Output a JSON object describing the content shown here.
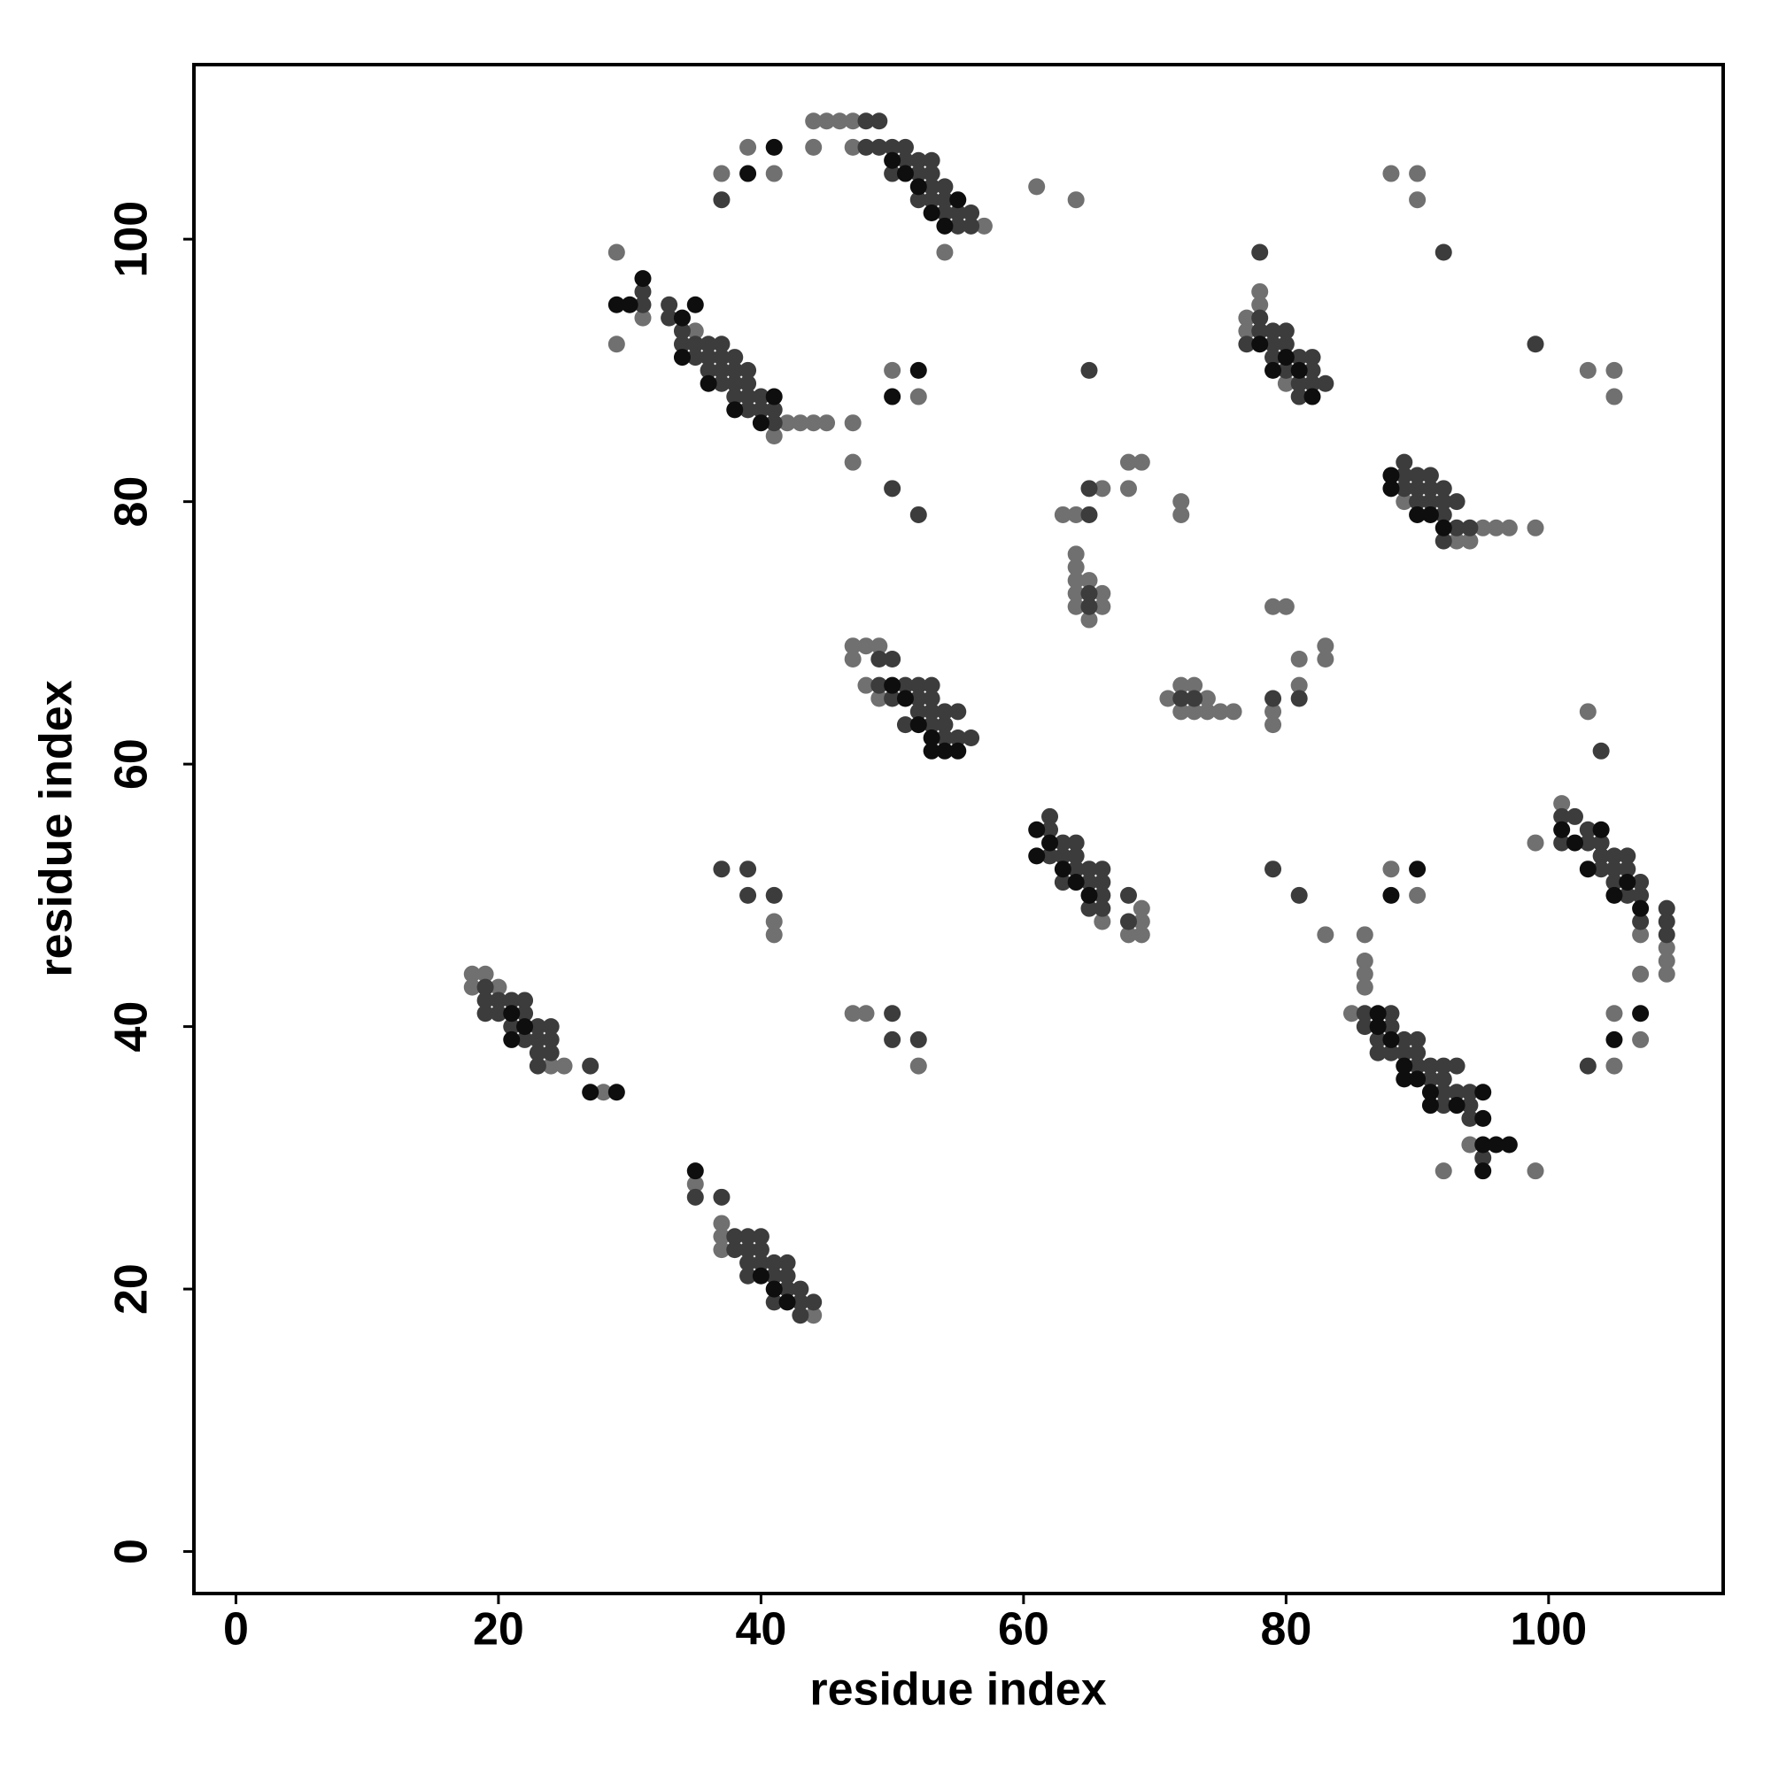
{
  "chart_data": {
    "type": "scatter",
    "xlabel": "residue index",
    "ylabel": "residue index",
    "xlim": [
      -3.2,
      113.3
    ],
    "ylim": [
      -3.2,
      113.3
    ],
    "xticks": [
      0,
      20,
      40,
      60,
      80,
      100
    ],
    "yticks": [
      0,
      20,
      40,
      60,
      80,
      100
    ],
    "series": [
      {
        "color": "#707070",
        "x": [
          44,
          45,
          46,
          47,
          39,
          44,
          47,
          37,
          41,
          54,
          61,
          64,
          57,
          29,
          31,
          35,
          29,
          42,
          43,
          44,
          45,
          47,
          41,
          47,
          50,
          52,
          47,
          48,
          49,
          47,
          48,
          49,
          64,
          63,
          66,
          68,
          69,
          68,
          72,
          72,
          64,
          64,
          64,
          65,
          64,
          66,
          64,
          66,
          65,
          71,
          72,
          73,
          74,
          72,
          73,
          74,
          75,
          76,
          79,
          80,
          79,
          79,
          81,
          81,
          83,
          83,
          78,
          78,
          77,
          77,
          80,
          88,
          90,
          90,
          103,
          105,
          105,
          93,
          94,
          95,
          96,
          97,
          99,
          89,
          66,
          68,
          69,
          69,
          69,
          101,
          99,
          109,
          109,
          109,
          107,
          107,
          103,
          83,
          88,
          90,
          86,
          86,
          86,
          86,
          85,
          92,
          99,
          94,
          105,
          107,
          105,
          18,
          18,
          19,
          20,
          24,
          25,
          28,
          41,
          41,
          47,
          48,
          52,
          35,
          37,
          37,
          37,
          44
        ],
        "y": [
          109,
          109,
          109,
          109,
          107,
          107,
          107,
          105,
          105,
          99,
          104,
          103,
          101,
          99,
          94,
          93,
          92,
          86,
          86,
          86,
          86,
          86,
          85,
          83,
          90,
          88,
          69,
          69,
          69,
          68,
          66,
          65,
          79,
          79,
          81,
          83,
          83,
          81,
          80,
          79,
          76,
          75,
          74,
          74,
          73,
          73,
          72,
          72,
          71,
          65,
          66,
          66,
          65,
          64,
          64,
          64,
          64,
          64,
          72,
          72,
          64,
          63,
          68,
          66,
          69,
          68,
          96,
          95,
          94,
          93,
          89,
          105,
          105,
          103,
          90,
          90,
          88,
          77,
          77,
          78,
          78,
          78,
          78,
          80,
          48,
          47,
          47,
          48,
          49,
          57,
          54,
          46,
          45,
          44,
          44,
          47,
          64,
          47,
          52,
          50,
          47,
          45,
          44,
          43,
          41,
          29,
          29,
          31,
          41,
          39,
          37,
          44,
          43,
          44,
          43,
          37,
          37,
          35,
          48,
          47,
          41,
          41,
          37,
          28,
          25,
          24,
          23,
          18
        ]
      },
      {
        "color": "#3c3c3c",
        "x": [
          48,
          49,
          48,
          49,
          50,
          51,
          51,
          52,
          53,
          50,
          52,
          53,
          53,
          54,
          37,
          52,
          53,
          54,
          54,
          55,
          56,
          55,
          56,
          31,
          31,
          33,
          33,
          34,
          34,
          35,
          36,
          37,
          35,
          36,
          37,
          38,
          36,
          37,
          38,
          39,
          37,
          38,
          39,
          38,
          39,
          40,
          39,
          40,
          41,
          41,
          50,
          52,
          49,
          50,
          49,
          51,
          52,
          53,
          50,
          52,
          53,
          52,
          53,
          54,
          55,
          51,
          53,
          54,
          54,
          55,
          56,
          65,
          65,
          65,
          65,
          72,
          73,
          79,
          81,
          65,
          78,
          78,
          78,
          79,
          80,
          77,
          79,
          80,
          79,
          81,
          82,
          80,
          82,
          81,
          82,
          83,
          81,
          92,
          99,
          89,
          89,
          90,
          91,
          89,
          90,
          91,
          92,
          90,
          91,
          92,
          93,
          92,
          93,
          94,
          92,
          62,
          62,
          63,
          64,
          62,
          63,
          64,
          64,
          65,
          66,
          63,
          65,
          66,
          66,
          68,
          65,
          66,
          68,
          101,
          102,
          103,
          101,
          103,
          104,
          104,
          105,
          106,
          104,
          105,
          106,
          105,
          107,
          106,
          107,
          107,
          109,
          109,
          109,
          104,
          79,
          81,
          86,
          88,
          86,
          88,
          87,
          89,
          90,
          87,
          88,
          89,
          90,
          90,
          91,
          92,
          93,
          91,
          92,
          92,
          93,
          94,
          92,
          94,
          94,
          95,
          103,
          19,
          19,
          20,
          21,
          22,
          19,
          20,
          22,
          21,
          23,
          24,
          22,
          23,
          24,
          23,
          24,
          23,
          27,
          37,
          39,
          39,
          41,
          50,
          50,
          52,
          35,
          37,
          38,
          39,
          40,
          38,
          39,
          40,
          39,
          40,
          41,
          42,
          39,
          41,
          42,
          42,
          43,
          41,
          43,
          44,
          43
        ],
        "y": [
          109,
          109,
          107,
          107,
          107,
          107,
          106,
          106,
          106,
          105,
          105,
          105,
          104,
          104,
          103,
          103,
          103,
          103,
          102,
          102,
          102,
          101,
          101,
          96,
          95,
          95,
          94,
          93,
          92,
          92,
          92,
          92,
          91,
          91,
          91,
          91,
          90,
          90,
          90,
          90,
          89,
          89,
          89,
          88,
          88,
          88,
          87,
          87,
          87,
          86,
          81,
          79,
          68,
          68,
          66,
          66,
          66,
          66,
          65,
          65,
          65,
          64,
          64,
          64,
          64,
          63,
          63,
          63,
          62,
          62,
          62,
          79,
          81,
          73,
          72,
          65,
          65,
          65,
          65,
          90,
          99,
          94,
          93,
          93,
          93,
          92,
          92,
          92,
          91,
          91,
          91,
          90,
          90,
          89,
          89,
          89,
          88,
          99,
          92,
          83,
          82,
          82,
          82,
          81,
          81,
          81,
          81,
          80,
          80,
          80,
          80,
          79,
          78,
          78,
          77,
          56,
          55,
          54,
          54,
          53,
          53,
          53,
          52,
          52,
          52,
          51,
          51,
          51,
          50,
          50,
          49,
          49,
          48,
          56,
          56,
          55,
          54,
          54,
          54,
          53,
          53,
          53,
          52,
          52,
          52,
          51,
          51,
          50,
          50,
          48,
          49,
          48,
          47,
          61,
          52,
          50,
          41,
          41,
          40,
          40,
          39,
          39,
          39,
          38,
          38,
          38,
          38,
          37,
          37,
          37,
          37,
          36,
          36,
          35,
          35,
          35,
          34,
          34,
          33,
          30,
          37,
          43,
          42,
          42,
          42,
          42,
          41,
          41,
          41,
          40,
          40,
          40,
          39,
          39,
          39,
          38,
          38,
          37,
          37,
          52,
          52,
          50,
          50,
          41,
          39,
          39,
          27,
          27,
          24,
          24,
          24,
          23,
          23,
          23,
          22,
          22,
          22,
          22,
          21,
          21,
          21,
          20,
          20,
          19,
          19,
          19,
          18
        ]
      },
      {
        "color": "#0e0e0e",
        "x": [
          41,
          39,
          31,
          29,
          30,
          35,
          34,
          34,
          36,
          38,
          40,
          41,
          50,
          51,
          52,
          53,
          54,
          55,
          52,
          50,
          50,
          51,
          52,
          53,
          54,
          55,
          53,
          79,
          80,
          81,
          82,
          78,
          88,
          88,
          90,
          91,
          92,
          61,
          61,
          62,
          63,
          64,
          65,
          101,
          102,
          104,
          103,
          105,
          106,
          107,
          90,
          88,
          105,
          107,
          87,
          87,
          88,
          89,
          89,
          90,
          91,
          91,
          93,
          95,
          95,
          95,
          96,
          97,
          95,
          35,
          27,
          29,
          21,
          22,
          21,
          40,
          41,
          42
        ],
        "y": [
          107,
          105,
          97,
          95,
          95,
          95,
          94,
          91,
          89,
          87,
          86,
          88,
          106,
          105,
          104,
          102,
          101,
          103,
          90,
          88,
          66,
          65,
          63,
          62,
          61,
          61,
          61,
          90,
          91,
          90,
          88,
          92,
          82,
          81,
          79,
          79,
          78,
          55,
          53,
          54,
          52,
          51,
          50,
          55,
          54,
          55,
          52,
          50,
          51,
          49,
          52,
          50,
          39,
          41,
          41,
          40,
          39,
          37,
          36,
          36,
          35,
          34,
          34,
          35,
          33,
          31,
          31,
          31,
          29,
          29,
          35,
          35,
          41,
          40,
          39,
          21,
          20,
          19
        ]
      }
    ]
  }
}
